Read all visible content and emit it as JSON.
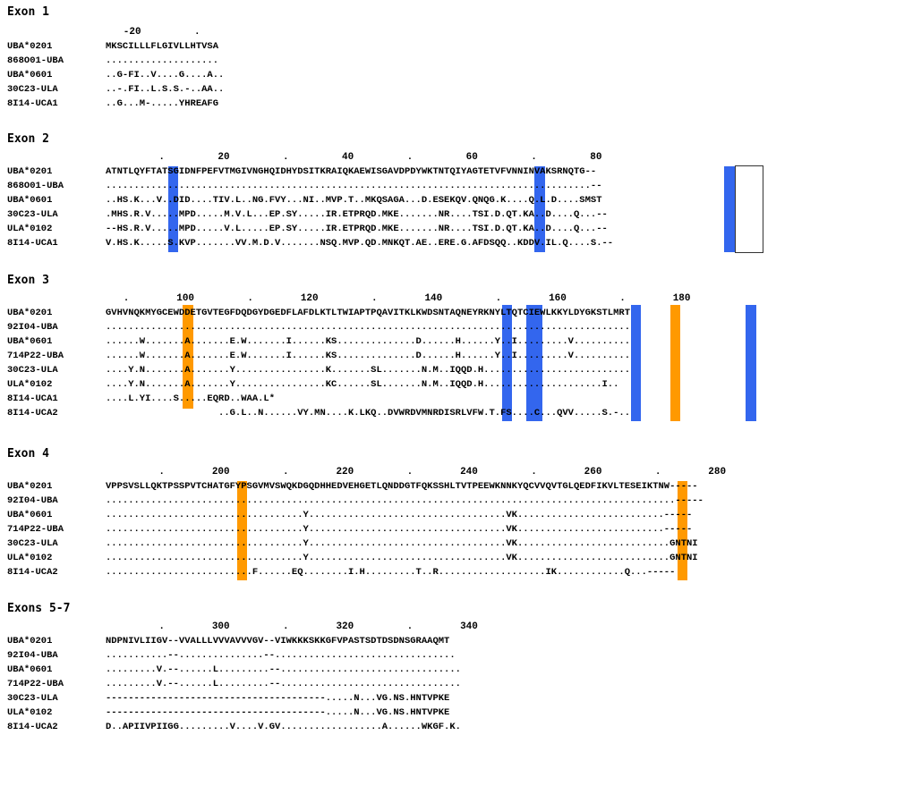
{
  "colors": {
    "blue": "#3366ee",
    "orange": "#ff9900"
  },
  "exons": [
    {
      "title": "Exon 1",
      "ruler": "   -20         .",
      "rows": [
        {
          "label": "UBA*0201",
          "seq": "MKSCILLLFLGIVLLHTVSA"
        },
        {
          "label": "868O01-UBA",
          "seq": "...................."
        },
        {
          "label": "UBA*0601",
          "seq": "..G-FI..V....G....A.."
        },
        {
          "label": "30C23-ULA",
          "seq": "..-.FI..L.S.S.-..AA.."
        },
        {
          "label": "8I14-UCA1",
          "seq": "..G...M-.....YHREAFG"
        }
      ]
    },
    {
      "title": "Exon 2",
      "ruler": "         .         20         .         40         .         60         .         80",
      "rows": [
        {
          "label": "UBA*0201",
          "seq": "ATNTLQYFTATSGIDNFPEFVTMGIVNGHQIDHYDSITKRAIQKAEWISGAVDPDYWKTNTQIYAGTETVFVNNINVAKSRNQTG--"
        },
        {
          "label": "868O01-UBA",
          "seq": "......................................................................................--"
        },
        {
          "label": "UBA*0601",
          "seq": "..HS.K...V..DID....TIV.L..NG.FVY...NI..MVP.T..MKQSAGA...D.ESEKQV.QNQG.K....Q.L.D....SMST"
        },
        {
          "label": "30C23-ULA",
          "seq": ".MHS.R.V.....MPD.....M.V.L...EP.SY.....IR.ETPRQD.MKE.......NR....TSI.D.QT.KA..D....Q...--"
        },
        {
          "label": "ULA*0102",
          "seq": "--HS.R.V.....MPD.....V.L.....EP.SY.....IR.ETPRQD.MKE.......NR....TSI.D.QT.KA..D....Q...--"
        },
        {
          "label": "8I14-UCA1",
          "seq": "V.HS.K.....S.KVP.......VV.M.D.V.......NSQ.MVP.QD.MNKQT.AE..ERE.G.AFDSQQ..KDDV.IL.Q....S.--"
        }
      ]
    },
    {
      "title": "Exon 3",
      "ruler": "   .        100         .        120         .        140         .        160         .        180",
      "rows": [
        {
          "label": "UBA*0201",
          "seq": "GVHVNQKMYGCEWDDETGVTEGFDQDGYDGEDFLAFDLKTLTWIAPTPQAVITKLKWDSNTAQNEYRKNYLTQTCIEWLKKYLDYGKSTLMRT"
        },
        {
          "label": "92I04-UBA",
          "seq": "............................................................................................."
        },
        {
          "label": "UBA*0601",
          "seq": "......W.......A.......E.W.......I......KS..............D......H......Y..I.........V.........."
        },
        {
          "label": "714P22-UBA",
          "seq": "......W.......A.......E.W.......I......KS..............D......H......Y..I.........V.........."
        },
        {
          "label": "30C23-ULA",
          "seq": "....Y.N.......A.......Y................K.......SL.......N.M..IQQD.H.........................."
        },
        {
          "label": "ULA*0102",
          "seq": "....Y.N.......A.......Y................KC......SL.......N.M..IQQD.H.....................I.."
        },
        {
          "label": "8I14-UCA1",
          "seq": "....L.YI....S.....EQRD..WAA.L*"
        },
        {
          "label": "8I14-UCA2",
          "seq": "                    ..G.L..N......VY.MN....K.LKQ..DVWRDVMNRDISRLVFW.T.FS....C...QVV.....S.-.."
        }
      ]
    },
    {
      "title": "Exon 4",
      "ruler": "         .        200         .        220         .        240         .        260         .        280",
      "rows": [
        {
          "label": "UBA*0201",
          "seq": "VPPSVSLLQKTPSSPVTCHATGFYPSGVMVSWQKDGQDHHEDVEHGETLQNDDGTFQKSSHLTVTPEEWKNNKYQCVVQVTGLQEDFIKVLTESEIKTNW-----"
        },
        {
          "label": "92I04-UBA",
          "seq": ".....................................................................................................-----"
        },
        {
          "label": "UBA*0601",
          "seq": "...................................Y...................................VK..........................-----"
        },
        {
          "label": "714P22-UBA",
          "seq": "...................................Y...................................VK..........................-----"
        },
        {
          "label": "30C23-ULA",
          "seq": "...................................Y...................................VK...........................GNTNI"
        },
        {
          "label": "ULA*0102",
          "seq": "...................................Y...................................VK...........................GNTNI"
        },
        {
          "label": "8I14-UCA2",
          "seq": "..........................F......EQ........I.H.........T..R...................IK............Q...-----"
        }
      ]
    },
    {
      "title": "Exons 5-7",
      "ruler": "         .        300         .        320         .        340",
      "rows": [
        {
          "label": "UBA*0201",
          "seq": "NDPNIVLIIGV--VVALLLVVVAVVVGV--VIWKKKSKKGFVPASTSDTDSDNSGRAAQMT"
        },
        {
          "label": "92I04-UBA",
          "seq": "...........--...............--................................"
        },
        {
          "label": "UBA*0601",
          "seq": ".........V.--......L.........--................................"
        },
        {
          "label": "714P22-UBA",
          "seq": ".........V.--......L.........--................................"
        },
        {
          "label": "30C23-ULA",
          "seq": "---------------------------------------.....N...VG.NS.HNTVPKE"
        },
        {
          "label": "ULA*0102",
          "seq": "---------------------------------------.....N...VG.NS.HNTVPKE"
        },
        {
          "label": "8I14-UCA2",
          "seq": "D..APIIVPIIGG.........V....V.GV..................A......WKGF.K."
        }
      ]
    }
  ]
}
